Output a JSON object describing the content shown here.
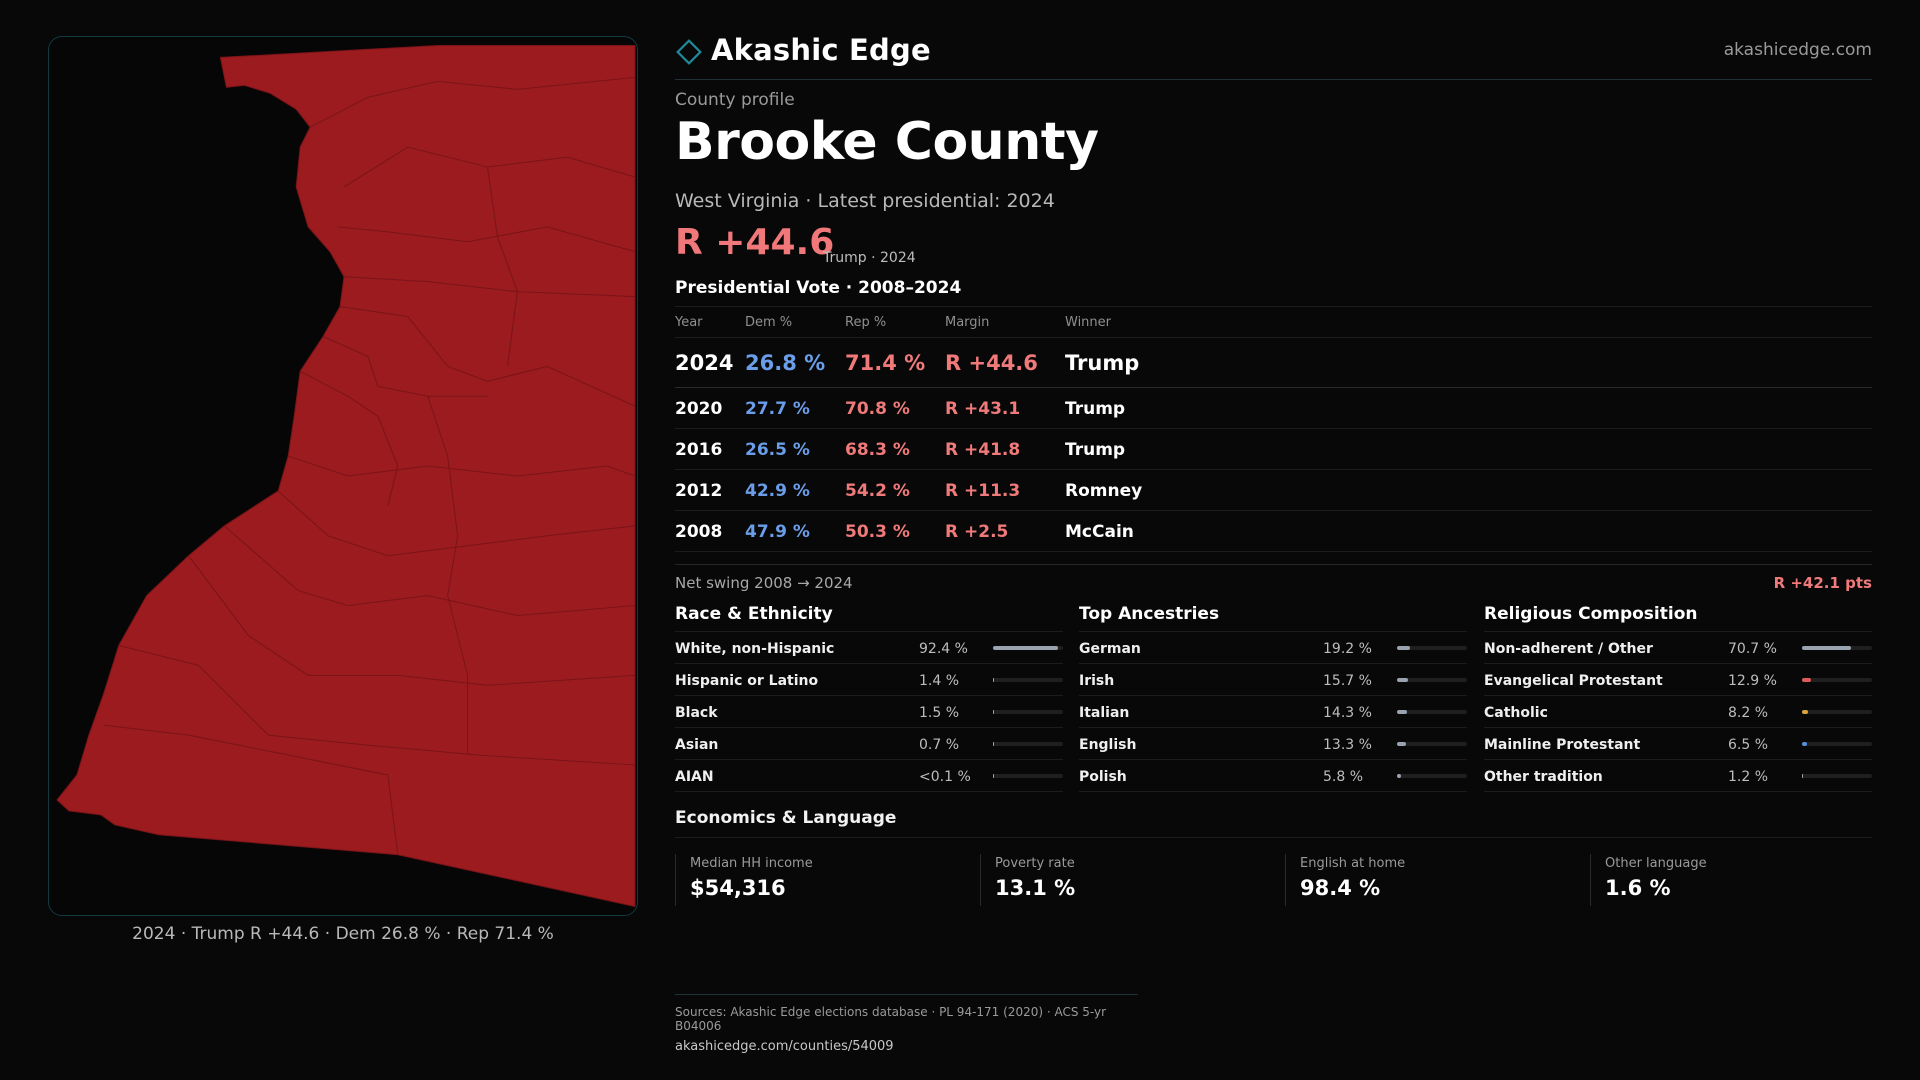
{
  "header": {
    "brand": "Akashic Edge",
    "site": "akashicedge.com"
  },
  "profile": {
    "eyebrow": "County profile",
    "title": "Brooke County",
    "subtitle": "West Virginia · Latest presidential: 2024",
    "margin": "R +44.6",
    "margin_note": "Trump · 2024"
  },
  "vote": {
    "title": "Presidential Vote · 2008–2024",
    "headers": {
      "year": "Year",
      "dem": "Dem %",
      "rep": "Rep %",
      "margin": "Margin",
      "winner": "Winner"
    },
    "rows": [
      {
        "year": "2024",
        "dem": "26.8 %",
        "rep": "71.4 %",
        "margin": "R +44.6",
        "winner": "Trump"
      },
      {
        "year": "2020",
        "dem": "27.7 %",
        "rep": "70.8 %",
        "margin": "R +43.1",
        "winner": "Trump"
      },
      {
        "year": "2016",
        "dem": "26.5 %",
        "rep": "68.3 %",
        "margin": "R +41.8",
        "winner": "Trump"
      },
      {
        "year": "2012",
        "dem": "42.9 %",
        "rep": "54.2 %",
        "margin": "R +11.3",
        "winner": "Romney"
      },
      {
        "year": "2008",
        "dem": "47.9 %",
        "rep": "50.3 %",
        "margin": "R +2.5",
        "winner": "McCain"
      }
    ],
    "swing_label": "Net swing 2008 → 2024",
    "swing_value": "R +42.1 pts"
  },
  "race": {
    "title": "Race & Ethnicity",
    "items": [
      {
        "label": "White, non-Hispanic",
        "value": "92.4 %",
        "fraction": 0.924,
        "color": "#9aa3b0"
      },
      {
        "label": "Hispanic or Latino",
        "value": "1.4 %",
        "fraction": 0.014,
        "color": "#9aa3b0"
      },
      {
        "label": "Black",
        "value": "1.5 %",
        "fraction": 0.015,
        "color": "#9aa3b0"
      },
      {
        "label": "Asian",
        "value": "0.7 %",
        "fraction": 0.007,
        "color": "#9aa3b0"
      },
      {
        "label": "AIAN",
        "value": "<0.1 %",
        "fraction": 0.0,
        "color": "#9aa3b0"
      }
    ]
  },
  "ancestry": {
    "title": "Top Ancestries",
    "items": [
      {
        "label": "German",
        "value": "19.2 %",
        "fraction": 0.192,
        "color": "#9aa3b0"
      },
      {
        "label": "Irish",
        "value": "15.7 %",
        "fraction": 0.157,
        "color": "#9aa3b0"
      },
      {
        "label": "Italian",
        "value": "14.3 %",
        "fraction": 0.143,
        "color": "#9aa3b0"
      },
      {
        "label": "English",
        "value": "13.3 %",
        "fraction": 0.133,
        "color": "#9aa3b0"
      },
      {
        "label": "Polish",
        "value": "5.8 %",
        "fraction": 0.058,
        "color": "#9aa3b0"
      }
    ]
  },
  "religion": {
    "title": "Religious Composition",
    "items": [
      {
        "label": "Non-adherent / Other",
        "value": "70.7 %",
        "fraction": 0.707,
        "color": "#9aa3b0"
      },
      {
        "label": "Evangelical Protestant",
        "value": "12.9 %",
        "fraction": 0.129,
        "color": "#e05a5a"
      },
      {
        "label": "Catholic",
        "value": "8.2 %",
        "fraction": 0.082,
        "color": "#d9a23a"
      },
      {
        "label": "Mainline Protestant",
        "value": "6.5 %",
        "fraction": 0.065,
        "color": "#5a8fe0"
      },
      {
        "label": "Other tradition",
        "value": "1.2 %",
        "fraction": 0.012,
        "color": "#9aa3b0"
      }
    ]
  },
  "economics": {
    "title": "Economics & Language",
    "items": [
      {
        "label": "Median HH income",
        "value": "$54,316"
      },
      {
        "label": "Poverty rate",
        "value": "13.1 %"
      },
      {
        "label": "English at home",
        "value": "98.4 %"
      },
      {
        "label": "Other language",
        "value": "1.6 %"
      }
    ]
  },
  "map": {
    "caption": "2024 · Trump R +44.6 · Dem 26.8 % · Rep 71.4 %",
    "fill": "#9b1b1f"
  },
  "footer": {
    "sources": "Sources: Akashic Edge elections database · PL 94-171 (2020) · ACS 5-yr B04006",
    "url": "akashicedge.com/counties/54009"
  }
}
